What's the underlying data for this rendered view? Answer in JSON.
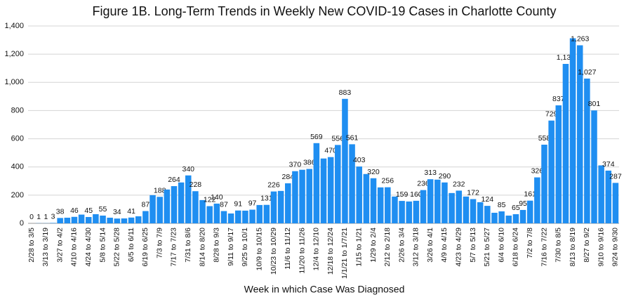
{
  "chart_data": {
    "type": "bar",
    "title": "Figure 1B. Long-Term Trends in Weekly New COVID-19 Cases in Charlotte County",
    "x_label": "Week in which Case Was Diagnosed",
    "color": "#1f8ef1",
    "grid": true,
    "ylim": [
      0,
      1400
    ],
    "yticks": [
      0,
      200,
      400,
      600,
      800,
      {
        "value": 1000,
        "label": "1,000"
      },
      {
        "value": 1200,
        "label": "1,200"
      },
      {
        "value": 1400,
        "label": "1,400"
      }
    ],
    "categories": [
      "2/28 to 3/5",
      null,
      "3/13 to 3/19",
      null,
      "3/27 to 4/2",
      null,
      "4/10 to 4/16",
      null,
      "4/24 to 4/30",
      null,
      "5/8 to 5/14",
      null,
      "5/22 to 5/28",
      null,
      "6/5 to 6/11",
      null,
      "6/19 to 6/25",
      null,
      "7/3 to 7/9",
      null,
      "7/17 to 7/23",
      null,
      "7/31 to 8/6",
      null,
      "8/14 to 8/20",
      null,
      "8/28 to 9/3",
      null,
      "9/11 to 9/17",
      null,
      "9/25 to 10/1",
      null,
      "10/9 to 10/15",
      null,
      "10/23 to 10/29",
      null,
      "11/6 to 11/12",
      null,
      "11/20 to 11/26",
      null,
      "12/4 to 12/10",
      null,
      "12/18 to 12/24",
      null,
      "1/1/21 to 1/7/21",
      null,
      "1/15 to 1/21",
      null,
      "1/29 to 2/4",
      null,
      "2/12 to 2/18",
      null,
      "2/26 to 3/4",
      null,
      "3/12 to 3/18",
      null,
      "3/26 to 4/1",
      null,
      "4/9 to 4/15",
      null,
      "4/23 to 4/29",
      null,
      "5/7 to 5/13",
      null,
      "5/21 to 5/27",
      null,
      "6/4 to 6/10",
      null,
      "6/18 to 6/24",
      null,
      "7/2 to 7/8",
      null,
      "7/16 to 7/22",
      null,
      "7/30 to 8/5",
      null,
      "8/13 to 8/19",
      null,
      "8/27 to 9/2",
      null,
      "9/10 to 9/16",
      null,
      "9/24 to 9/30"
    ],
    "values": [
      0,
      1,
      1,
      3,
      38,
      40,
      46,
      62,
      45,
      65,
      55,
      40,
      34,
      35,
      41,
      50,
      87,
      200,
      188,
      240,
      264,
      290,
      340,
      228,
      165,
      122,
      140,
      87,
      70,
      91,
      90,
      97,
      130,
      131,
      226,
      230,
      284,
      370,
      380,
      386,
      569,
      460,
      470,
      556,
      883,
      561,
      403,
      350,
      320,
      255,
      256,
      190,
      159,
      155,
      160,
      236,
      313,
      310,
      290,
      215,
      232,
      190,
      172,
      150,
      124,
      75,
      85,
      55,
      65,
      95,
      161,
      326,
      558,
      729,
      837,
      1131,
      1313,
      1263,
      1027,
      801,
      411,
      374,
      287
    ],
    "value_labels": [
      "0",
      "1",
      "1",
      "3",
      "38",
      null,
      "46",
      null,
      "45",
      null,
      "55",
      null,
      "34",
      null,
      "41",
      null,
      "87",
      null,
      "188",
      null,
      "264",
      null,
      "340",
      "228",
      null,
      "122",
      "140",
      "87",
      null,
      "91",
      null,
      "97",
      null,
      "131",
      "226",
      null,
      "284",
      "370",
      null,
      "386",
      "569",
      null,
      "470",
      "556",
      "883",
      "561",
      "403",
      null,
      "320",
      null,
      "256",
      null,
      "159",
      null,
      "160",
      "236",
      "313",
      null,
      "290",
      null,
      "232",
      null,
      "172",
      null,
      "124",
      null,
      "85",
      null,
      "65",
      "95",
      "161",
      "326",
      "558",
      "729",
      "837",
      "1,131",
      null,
      "1,263",
      "1,027",
      "801",
      null,
      "374",
      "287"
    ]
  }
}
